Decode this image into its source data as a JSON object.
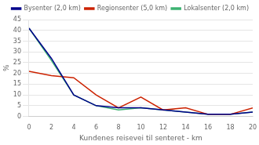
{
  "chart_data": {
    "type": "line",
    "xlabel": "Kundenes reisevei til senteret - km",
    "ylabel": "%",
    "x": [
      0,
      2,
      4,
      6,
      8,
      10,
      12,
      14,
      16,
      18,
      20
    ],
    "series": [
      {
        "name": "Bysenter (2,0 km)",
        "color": "#00008B",
        "values": [
          41,
          27,
          10,
          5,
          4,
          4,
          3,
          2,
          1,
          1,
          2
        ]
      },
      {
        "name": "Regionsenter (5,0 km)",
        "color": "#CC2200",
        "values": [
          21,
          19,
          18,
          10,
          4,
          9,
          3,
          4,
          1,
          1,
          4
        ]
      },
      {
        "name": "Lokalsenter (2,0 km)",
        "color": "#3CB371",
        "values": [
          41,
          26,
          10,
          5,
          3,
          4,
          3,
          2,
          1,
          1,
          2
        ]
      }
    ],
    "xlim": [
      0,
      20
    ],
    "xticks": [
      0,
      2,
      4,
      6,
      8,
      10,
      12,
      14,
      16,
      18,
      20
    ],
    "ylim": [
      0,
      45
    ],
    "yticks": [
      0,
      5,
      10,
      15,
      20,
      25,
      30,
      35,
      40,
      45
    ],
    "grid": "y",
    "legend": "upper right"
  }
}
